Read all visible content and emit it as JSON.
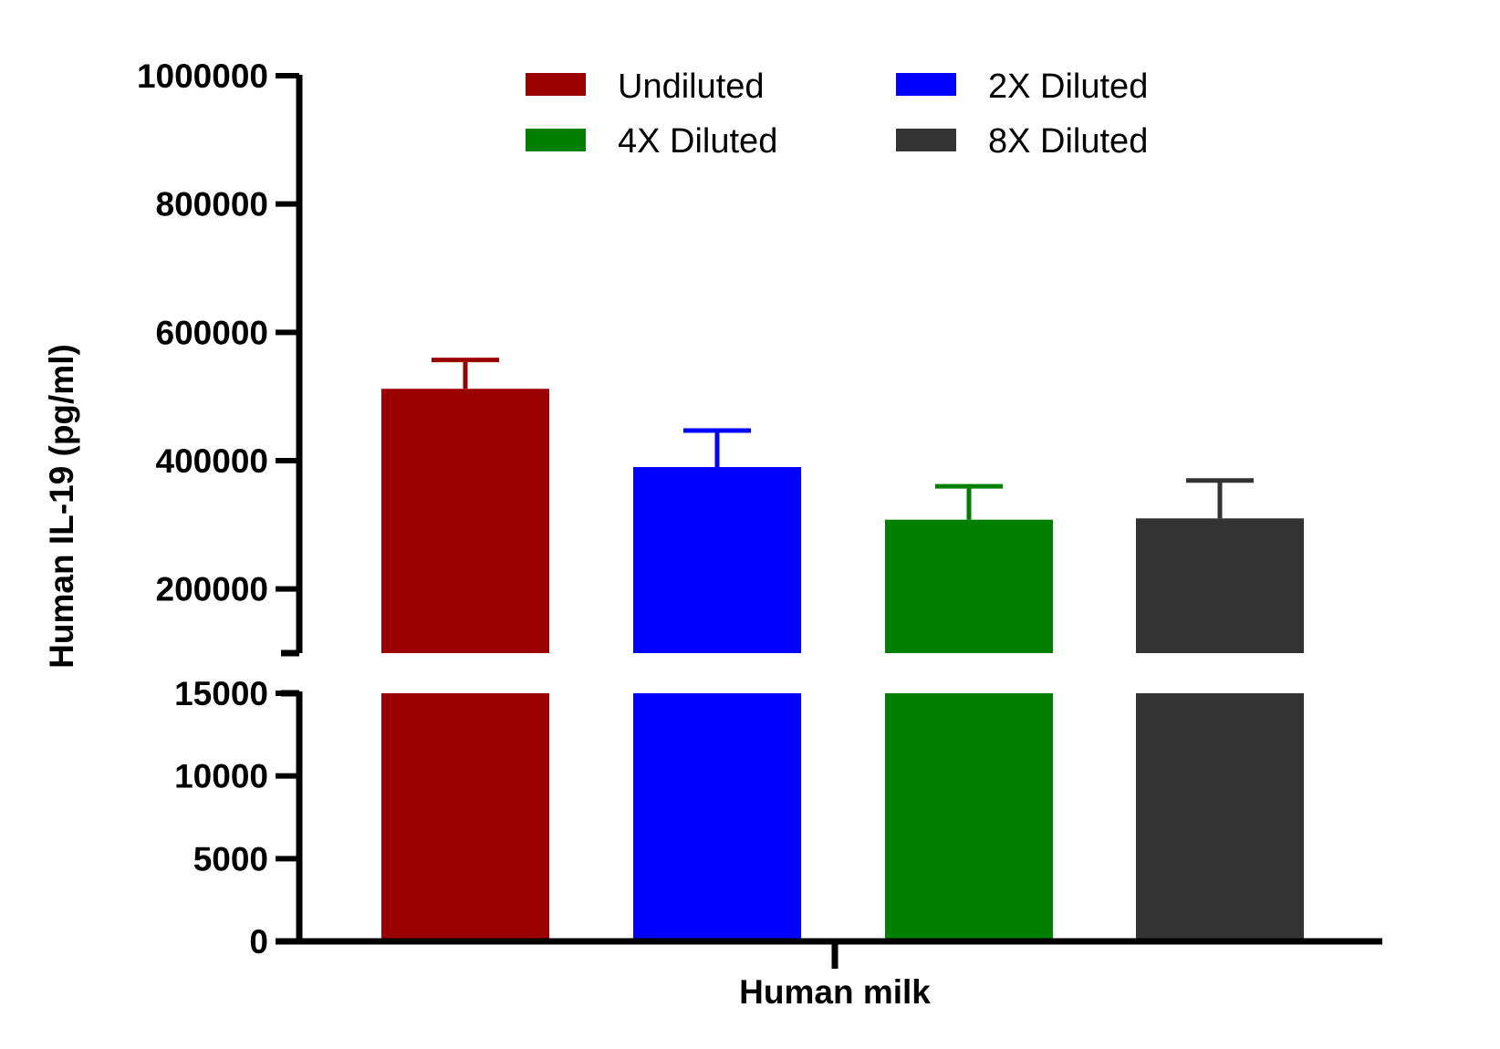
{
  "chart_data": {
    "type": "bar",
    "categories": [
      "Human milk"
    ],
    "xlabel": "Human milk",
    "ylabel": "Human IL-19 (pg/ml)",
    "y_axis_break": {
      "lower_segment": {
        "ylim": [
          0,
          15000
        ],
        "ticks": [
          "0",
          "5000",
          "10000",
          "15000"
        ]
      },
      "upper_segment": {
        "ylim": [
          100000,
          1000000
        ],
        "ticks": [
          "200000",
          "400000",
          "600000",
          "800000",
          "1000000"
        ]
      }
    },
    "series": [
      {
        "name": "Undiluted",
        "color": "#9B0000",
        "value": 512000,
        "error": 45000
      },
      {
        "name": "2X Diluted",
        "color": "#0000FF",
        "value": 390000,
        "error": 57000
      },
      {
        "name": "4X Diluted",
        "color": "#007F00",
        "value": 308000,
        "error": 52000
      },
      {
        "name": "8X Diluted",
        "color": "#333333",
        "value": 310000,
        "error": 59000
      }
    ],
    "legend_position": "top",
    "grid": false
  }
}
